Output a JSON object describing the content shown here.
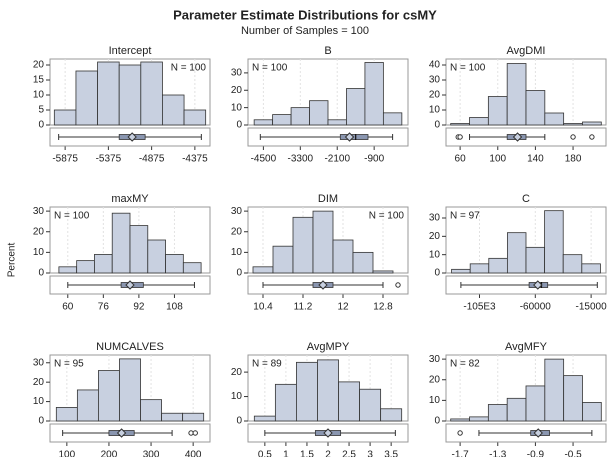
{
  "title": "Parameter Estimate Distributions for csMY",
  "subtitle": "Number of Samples = 100",
  "y_label": "Percent",
  "chart_data": [
    {
      "type": "histogram",
      "title": "Intercept",
      "annotation": "N = 100",
      "annotation_position": "right",
      "color": "#c8d0e0",
      "grid": true,
      "bins": [
        -6000,
        -5750,
        -5500,
        -5250,
        -5000,
        -4750,
        -4500,
        -4250
      ],
      "values": [
        5,
        18,
        21,
        20,
        21,
        10,
        5
      ],
      "xlim": [
        -6050,
        -4200
      ],
      "xticks": [
        -5875,
        -5375,
        -4875,
        -4375
      ],
      "ylim": [
        0,
        22
      ],
      "yticks": [
        0,
        5,
        10,
        15,
        20
      ],
      "box": {
        "min": -5950,
        "q1": -5250,
        "median": -5100,
        "mean": -5100,
        "q3": -4950,
        "max": -4300,
        "outliers": []
      }
    },
    {
      "type": "histogram",
      "title": "B",
      "annotation": "N = 100",
      "annotation_position": "left",
      "color": "#c8d0e0",
      "grid": true,
      "bins": [
        -4800,
        -4200,
        -3600,
        -3000,
        -2400,
        -1800,
        -1200,
        -600,
        0
      ],
      "values": [
        3,
        6,
        10,
        14,
        3,
        21,
        36,
        7
      ],
      "xlim": [
        -5000,
        200
      ],
      "xticks": [
        -4500,
        -3300,
        -2100,
        -900
      ],
      "ylim": [
        0,
        38
      ],
      "yticks": [
        0,
        10,
        20,
        30
      ],
      "box": {
        "min": -4600,
        "q1": -2000,
        "median": -1500,
        "mean": -1700,
        "q3": -1100,
        "max": -300,
        "outliers": []
      }
    },
    {
      "type": "histogram",
      "title": "AvgDMI",
      "annotation": "N = 100",
      "annotation_position": "left",
      "color": "#c8d0e0",
      "grid": true,
      "bins": [
        50,
        70,
        90,
        110,
        130,
        150,
        170,
        190,
        210
      ],
      "values": [
        1,
        5,
        19,
        41,
        23,
        8,
        1,
        2
      ],
      "xlim": [
        45,
        215
      ],
      "xticks": [
        60,
        100,
        140,
        180
      ],
      "ylim": [
        0,
        44
      ],
      "yticks": [
        0,
        10,
        20,
        30,
        40
      ],
      "box": {
        "min": 70,
        "q1": 110,
        "median": 120,
        "mean": 121,
        "q3": 130,
        "max": 150,
        "outliers": [
          58,
          60,
          180,
          200
        ]
      }
    },
    {
      "type": "histogram",
      "title": "maxMY",
      "annotation": "N = 100",
      "annotation_position": "left",
      "color": "#c8d0e0",
      "grid": true,
      "bins": [
        56,
        64,
        72,
        80,
        88,
        96,
        104,
        112,
        120
      ],
      "values": [
        3,
        6,
        9,
        29,
        23,
        16,
        9,
        5
      ],
      "xlim": [
        52,
        124
      ],
      "xticks": [
        60,
        76,
        92,
        108
      ],
      "ylim": [
        0,
        32
      ],
      "yticks": [
        0,
        10,
        20,
        30
      ],
      "box": {
        "min": 60,
        "q1": 84,
        "median": 88,
        "mean": 88,
        "q3": 94,
        "max": 117,
        "outliers": []
      }
    },
    {
      "type": "histogram",
      "title": "DIM",
      "annotation": "N = 100",
      "annotation_position": "right",
      "color": "#c8d0e0",
      "grid": true,
      "bins": [
        10.2,
        10.6,
        11.0,
        11.4,
        11.8,
        12.2,
        12.6,
        13.0
      ],
      "values": [
        3,
        13,
        27,
        30,
        16,
        10,
        1
      ],
      "xlim": [
        10.1,
        13.3
      ],
      "xticks": [
        10.4,
        11.2,
        12,
        12.8
      ],
      "ylim": [
        0,
        32
      ],
      "yticks": [
        0,
        10,
        20,
        30
      ],
      "box": {
        "min": 10.4,
        "q1": 11.4,
        "median": 11.6,
        "mean": 11.6,
        "q3": 11.8,
        "max": 12.8,
        "outliers": [
          13.1
        ]
      }
    },
    {
      "type": "histogram",
      "title": "C",
      "annotation": "N = 97",
      "annotation_position": "left",
      "color": "#c8d0e0",
      "grid": true,
      "bins": [
        -127500,
        -112500,
        -97500,
        -82500,
        -67500,
        -52500,
        -37500,
        -22500,
        -7500
      ],
      "values": [
        2,
        5,
        8,
        22,
        14,
        34,
        10,
        5
      ],
      "xlim": [
        -132000,
        -3000
      ],
      "xticks": [
        {
          "value": -105000,
          "label": "-105E3"
        },
        -60000,
        -15000
      ],
      "ylim": [
        0,
        36
      ],
      "yticks": [
        0,
        10,
        20,
        30
      ],
      "box": {
        "min": -120000,
        "q1": -65000,
        "median": -55000,
        "mean": -58000,
        "q3": -50000,
        "max": -10000,
        "outliers": []
      }
    },
    {
      "type": "histogram",
      "title": "NUMCALVES",
      "annotation": "N = 95",
      "annotation_position": "left",
      "color": "#c8d0e0",
      "grid": true,
      "bins": [
        75,
        125,
        175,
        225,
        275,
        325,
        375,
        425
      ],
      "values": [
        7,
        16,
        26,
        32,
        11,
        4,
        4
      ],
      "xlim": [
        60,
        440
      ],
      "xticks": [
        100,
        200,
        300,
        400
      ],
      "ylim": [
        0,
        34
      ],
      "yticks": [
        0,
        10,
        20,
        30
      ],
      "box": {
        "min": 90,
        "q1": 200,
        "median": 225,
        "mean": 230,
        "q3": 260,
        "max": 350,
        "outliers": [
          395,
          405
        ]
      }
    },
    {
      "type": "histogram",
      "title": "AvgMPY",
      "annotation": "N = 89",
      "annotation_position": "left",
      "color": "#c8d0e0",
      "grid": true,
      "bins": [
        0.25,
        0.75,
        1.25,
        1.75,
        2.25,
        2.75,
        3.25,
        3.75
      ],
      "values": [
        2,
        15,
        24,
        25,
        16,
        13,
        5
      ],
      "xlim": [
        0.1,
        3.9
      ],
      "xticks": [
        0.5,
        1,
        1.5,
        2,
        2.5,
        3,
        3.5
      ],
      "ylim": [
        0,
        27
      ],
      "yticks": [
        0,
        10,
        20
      ],
      "box": {
        "min": 0.5,
        "q1": 1.7,
        "median": 2.0,
        "mean": 2.0,
        "q3": 2.3,
        "max": 3.6,
        "outliers": []
      }
    },
    {
      "type": "histogram",
      "title": "AvgMFY",
      "annotation": "N = 82",
      "annotation_position": "left",
      "color": "#c8d0e0",
      "grid": true,
      "bins": [
        -1.8,
        -1.6,
        -1.4,
        -1.2,
        -1.0,
        -0.8,
        -0.6,
        -0.4,
        -0.2
      ],
      "values": [
        1,
        2,
        8,
        11,
        17,
        30,
        22,
        9
      ],
      "xlim": [
        -1.85,
        -0.15
      ],
      "xticks": [
        -1.7,
        -1.3,
        -0.9,
        -0.5
      ],
      "ylim": [
        0,
        32
      ],
      "yticks": [
        0,
        10,
        20,
        30
      ],
      "box": {
        "min": -1.5,
        "q1": -0.95,
        "median": -0.85,
        "mean": -0.87,
        "q3": -0.75,
        "max": -0.3,
        "outliers": [
          -1.7
        ]
      }
    }
  ]
}
